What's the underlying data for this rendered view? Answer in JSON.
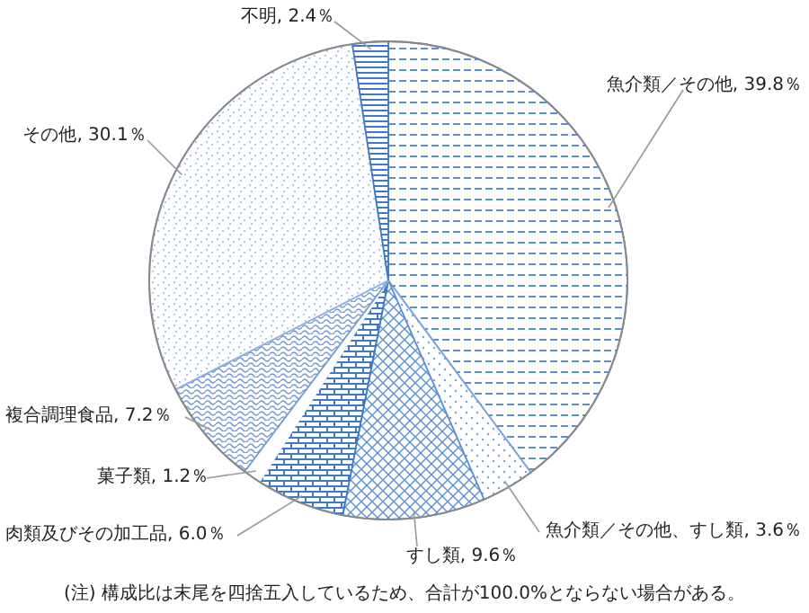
{
  "chart_data": {
    "type": "pie",
    "categories": [
      "魚介類／その他",
      "魚介類／その他、すし類",
      "すし類",
      "肉類及びその加工品",
      "菓子類",
      "複合調理食品",
      "その他",
      "不明"
    ],
    "values": [
      39.8,
      3.6,
      9.6,
      6.0,
      1.2,
      7.2,
      30.1,
      2.4
    ],
    "value_labels": [
      "39.8％",
      "3.6％",
      "9.6％",
      "6.0％",
      "1.2％",
      "7.2％",
      "30.1％",
      "2.4％"
    ],
    "colors": [
      "#5b8fd6",
      "#7aa3dd",
      "#5b8fd6",
      "#3f78c8",
      "#ffffff",
      "#6f9ad8",
      "#8fb2e3",
      "#3f78c8"
    ],
    "annotations": [
      "(注) 構成比は末尾を四捨五入しているため、合計が100.0%とならない場合がある。"
    ]
  }
}
